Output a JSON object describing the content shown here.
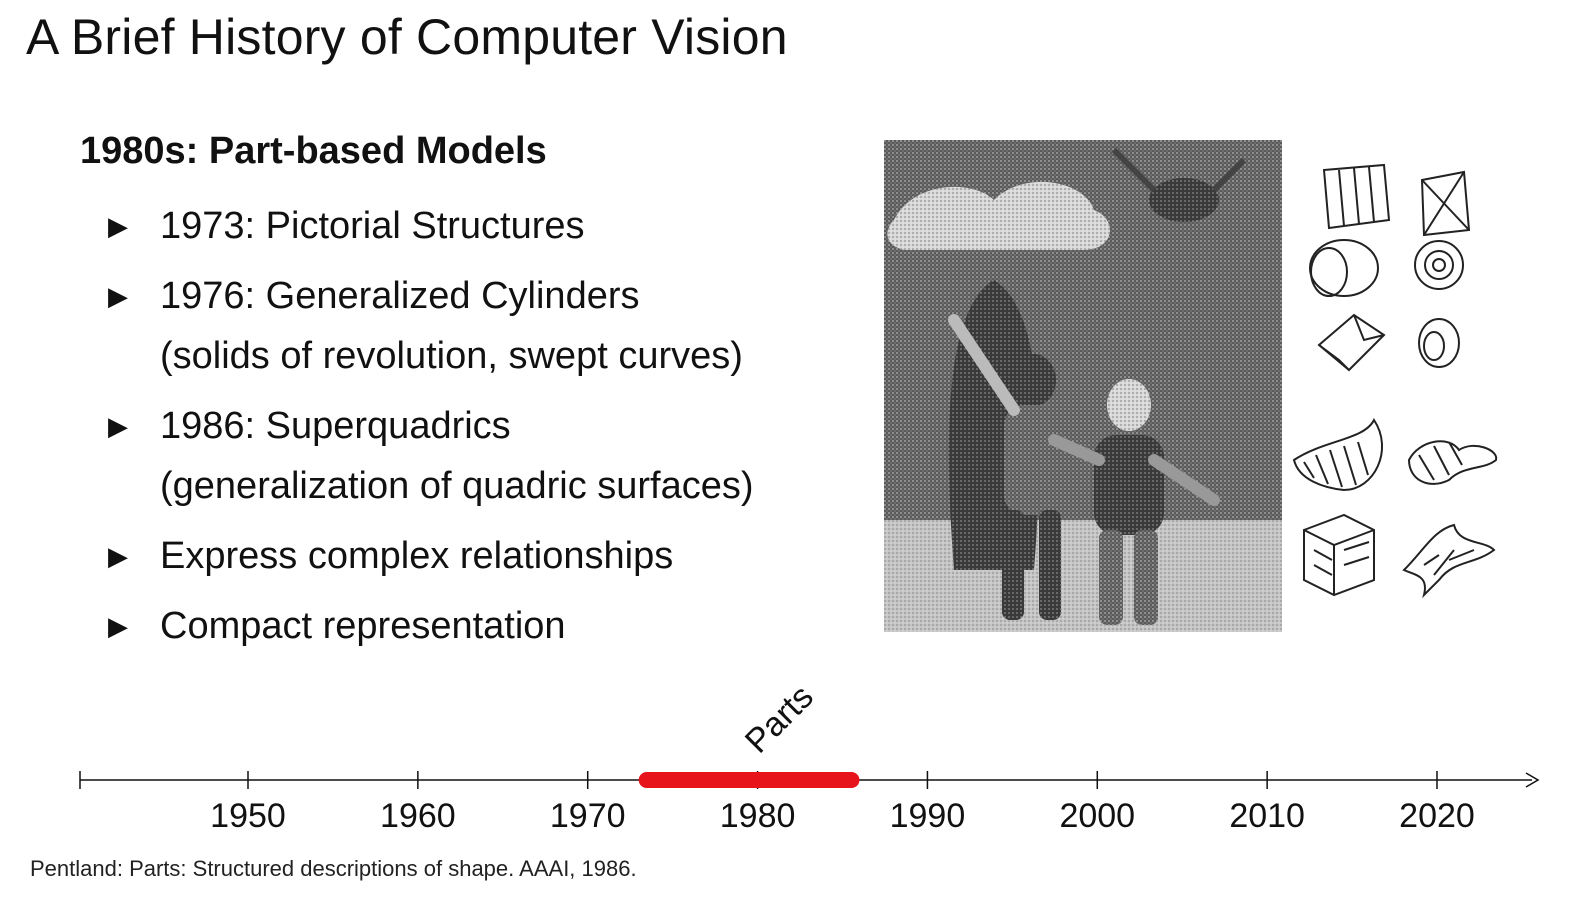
{
  "slide": {
    "title": "A Brief History of Computer Vision",
    "heading": "1980s: Part-based Models",
    "bullets": [
      {
        "text": "1973: Pictorial Structures",
        "sub": ""
      },
      {
        "text": "1976: Generalized Cylinders",
        "sub": "(solids of revolution, swept curves)"
      },
      {
        "text": "1986: Superquadrics",
        "sub": "(generalization of quadric surfaces)"
      },
      {
        "text": "Express complex relationships",
        "sub": ""
      },
      {
        "text": "Compact representation",
        "sub": ""
      }
    ],
    "bullet_marker": "▶",
    "footnote": "Pentland: Parts: Structured descriptions of shape. AAAI, 1986."
  },
  "timeline": {
    "years": [
      "1950",
      "1960",
      "1970",
      "1980",
      "1990",
      "2000",
      "2010",
      "2020"
    ],
    "range_min": 1940,
    "range_max": 2026,
    "highlight": {
      "label": "Parts",
      "start": 1973,
      "end": 1986,
      "color": "#e8141c"
    }
  },
  "figure": {
    "photo_icon": "superquadric-scene-photo",
    "primitives_icon": "part-primitives-drawings"
  }
}
